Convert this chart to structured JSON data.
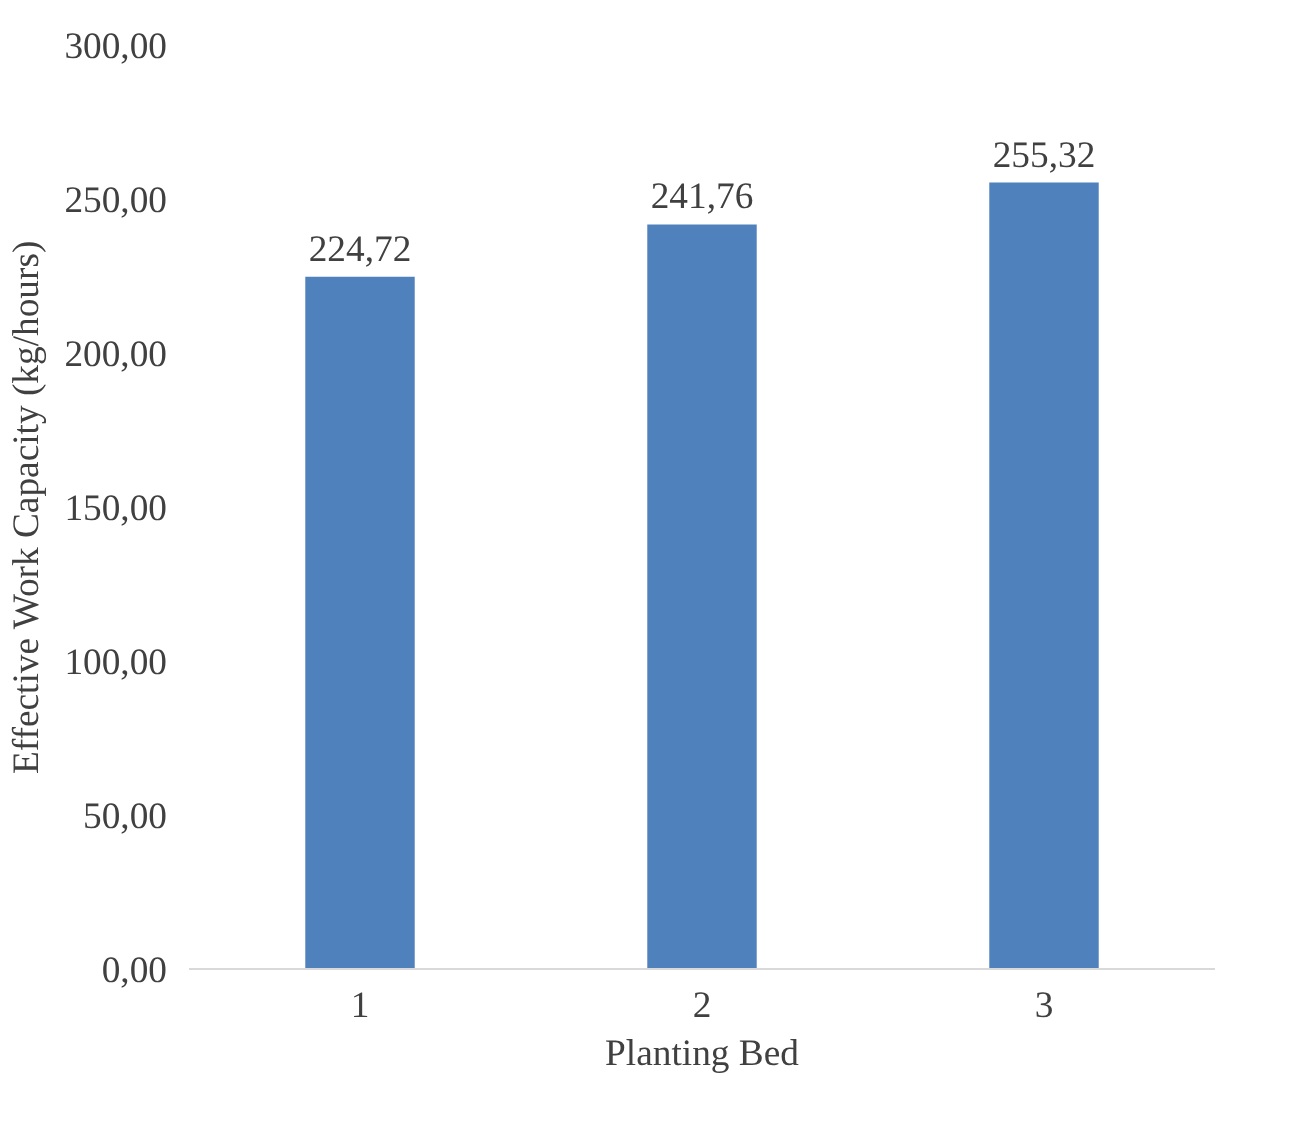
{
  "chart_data": {
    "type": "bar",
    "xlabel": "Planting Bed",
    "ylabel": "Effective Work Capacity (kg/hours)",
    "categories": [
      "1",
      "2",
      "3"
    ],
    "values": [
      224.72,
      241.76,
      255.32
    ],
    "value_labels": [
      "224,72",
      "241,76",
      "255,32"
    ],
    "color": "#4f81bd",
    "ylim": [
      0,
      300
    ],
    "yticks": [
      {
        "value": 0,
        "label": "0,00"
      },
      {
        "value": 50,
        "label": "50,00"
      },
      {
        "value": 100,
        "label": "100,00"
      },
      {
        "value": 150,
        "label": "150,00"
      },
      {
        "value": 200,
        "label": "200,00"
      },
      {
        "value": 250,
        "label": "250,00"
      },
      {
        "value": 300,
        "label": "300,00"
      }
    ],
    "grid": false
  }
}
